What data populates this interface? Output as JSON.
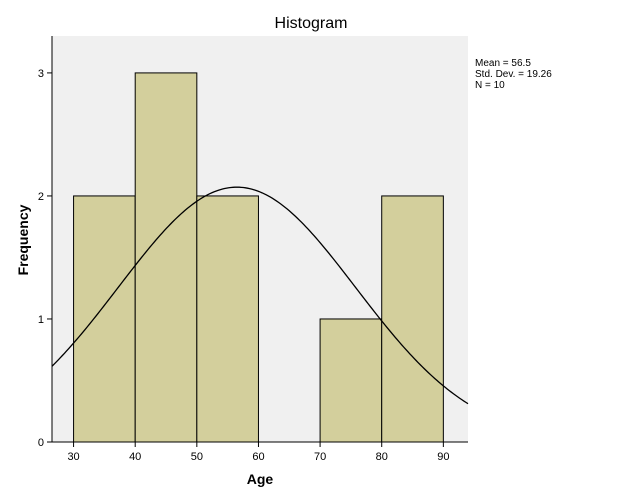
{
  "chart_data": {
    "type": "bar",
    "title": "Histogram",
    "xlabel": "Age",
    "ylabel": "Frequency",
    "bins": [
      {
        "start": 30,
        "end": 40,
        "count": 2
      },
      {
        "start": 40,
        "end": 50,
        "count": 3
      },
      {
        "start": 50,
        "end": 60,
        "count": 2
      },
      {
        "start": 60,
        "end": 70,
        "count": 0
      },
      {
        "start": 70,
        "end": 80,
        "count": 1
      },
      {
        "start": 80,
        "end": 90,
        "count": 2
      }
    ],
    "xlim": [
      26.5,
      94
    ],
    "ylim": [
      0,
      3.3
    ],
    "xticks": [
      30,
      40,
      50,
      60,
      70,
      80,
      90
    ],
    "yticks": [
      0,
      1,
      2,
      3
    ],
    "normal_curve": {
      "mean": 56.5,
      "sd": 19.26,
      "n": 10,
      "bin_width": 10
    },
    "stats": {
      "mean_text": "Mean = 56.5",
      "sd_text": "Std. Dev. = 19.26",
      "n_text": "N = 10"
    },
    "colors": {
      "bar_fill": "#d3cf9c",
      "bar_stroke": "#000000",
      "plot_background": "#f0f0f0",
      "curve": "#000000"
    },
    "grid": false,
    "legend": "none"
  }
}
